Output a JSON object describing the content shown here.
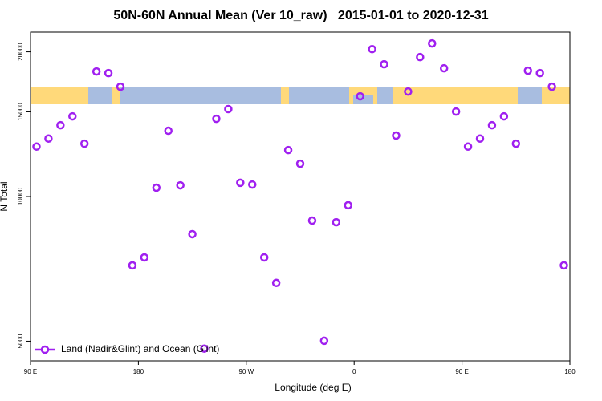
{
  "chart_data": {
    "type": "scatter",
    "title": "50N-60N Annual Mean (Ver 10_raw)   2015-01-01 to 2020-12-31",
    "xlabel": "Longitude (deg E)",
    "ylabel": "N Total",
    "x": [
      95,
      105,
      115,
      125,
      135,
      145,
      155,
      165,
      175,
      185,
      195,
      205,
      215,
      225,
      235,
      245,
      255,
      265,
      275,
      285,
      295,
      305,
      315,
      325,
      335,
      345,
      355,
      365,
      375,
      385,
      395,
      405,
      415,
      425,
      435,
      445,
      455,
      465,
      475,
      485,
      495,
      505,
      515,
      525,
      535
    ],
    "series": [
      {
        "name": "Land (Nadir&Glint) and Ocean (Glint)",
        "color": "#a020f0",
        "values": [
          12700,
          13200,
          14070,
          14680,
          12880,
          18200,
          18060,
          16920,
          7190,
          7470,
          10430,
          13700,
          10550,
          8350,
          4825,
          14510,
          15200,
          10680,
          10590,
          7470,
          6610,
          12490,
          11700,
          8910,
          5010,
          8840,
          9590,
          16160,
          20260,
          18840,
          13390,
          16530,
          19500,
          20820,
          18480,
          15020,
          12700,
          13200,
          14070,
          14680,
          12880,
          18270,
          18060,
          16920,
          7190
        ]
      }
    ],
    "xlim": [
      90,
      540
    ],
    "xticks": [
      {
        "value": 90,
        "label": "90 E"
      },
      {
        "value": 180,
        "label": "180"
      },
      {
        "value": 270,
        "label": "90 W"
      },
      {
        "value": 360,
        "label": "0"
      },
      {
        "value": 450,
        "label": "90 E"
      },
      {
        "value": 540,
        "label": "180"
      }
    ],
    "ylim": [
      4550,
      21980
    ],
    "yticks": [
      5000,
      10000,
      15000,
      20000
    ],
    "ylog": true,
    "legend": "bottom-left"
  }
}
